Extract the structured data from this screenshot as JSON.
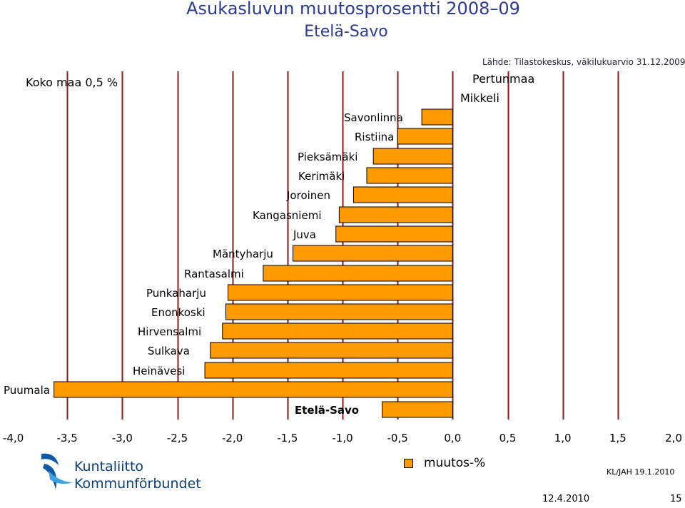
{
  "titles": {
    "main": "Asukasluvun muutosprosentti 2008–09",
    "sub": "Etelä-Savo",
    "source": "Lähde: Tilastokeskus, väkilukuarvio 31.12.2009",
    "reference": "Koko maa 0,5 %"
  },
  "legend": {
    "label": "muutos-%"
  },
  "footer": {
    "id": "KL/JAH 19.1.2010",
    "date": "12.4.2010",
    "page": "15",
    "logo_line1": "Kuntaliitto",
    "logo_line2": "Kommunförbundet"
  },
  "colors": {
    "bar": "#ff9900",
    "gridline": "#8b1a1a",
    "title": "#2b3a8f"
  },
  "chart_data": {
    "type": "bar",
    "orientation": "horizontal",
    "xlabel": "muutos-%",
    "xlim": [
      -4.0,
      2.0
    ],
    "xticks": [
      "-4,0",
      "-3,5",
      "-3,0",
      "-2,5",
      "-2,0",
      "-1,5",
      "-1,0",
      "-0,5",
      "0,0",
      "0,5",
      "1,0",
      "1,5",
      "2,0"
    ],
    "xtick_values": [
      -4.0,
      -3.5,
      -3.0,
      -2.5,
      -2.0,
      -1.5,
      -1.0,
      -0.5,
      0.0,
      0.5,
      1.0,
      1.5,
      2.0
    ],
    "vertical_gridlines": true,
    "categories": [
      "Pertunmaa",
      "Mikkeli",
      "Savonlinna",
      "Ristiina",
      "Pieksämäki",
      "Kerimäki",
      "Joroinen",
      "Kangasniemi",
      "Juva",
      "Mäntyharju",
      "Rantasalmi",
      "Punkaharju",
      "Enonkoski",
      "Hirvensalmi",
      "Sulkava",
      "Heinävesi",
      "Puumala",
      "Etelä-Savo"
    ],
    "values": [
      0.0,
      0.0,
      -0.28,
      -0.5,
      -0.72,
      -0.78,
      -0.9,
      -1.03,
      -1.06,
      -1.45,
      -1.72,
      -2.04,
      -2.06,
      -2.09,
      -2.2,
      -2.25,
      -3.62,
      -0.64
    ]
  }
}
